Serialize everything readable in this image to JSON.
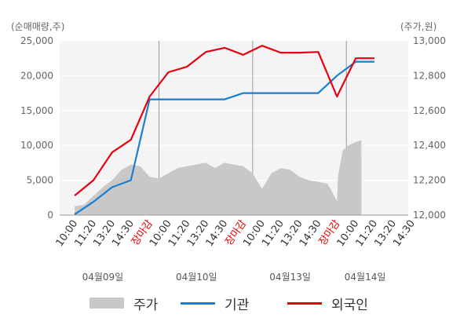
{
  "chart_data": {
    "type": "line",
    "left_axis_unit": "(순매매량,주)",
    "right_axis_unit": "(주가,원)",
    "left_ticks": [
      "0",
      "5,000",
      "10,000",
      "15,000",
      "20,000",
      "25,000"
    ],
    "right_ticks": [
      "12,000",
      "12,200",
      "12,400",
      "12,600",
      "12,800",
      "13,000"
    ],
    "ylim_left": [
      0,
      25000
    ],
    "ylim_right": [
      12000,
      13000
    ],
    "x_ticks": [
      "10:00",
      "11:20",
      "13:20",
      "14:30",
      "장마감",
      "10:00",
      "11:20",
      "13:20",
      "14:30",
      "장마감",
      "10:00",
      "11:20",
      "13:20",
      "14:30",
      "장마감",
      "10:00",
      "11:20",
      "13:20",
      "14:30"
    ],
    "close_label": "장마감",
    "dates": [
      "04월09일",
      "04월10일",
      "04월13일",
      "04월14일"
    ],
    "series": [
      {
        "name": "기관",
        "color": "#1a7fd0",
        "x": [
          0,
          1,
          2,
          3,
          4,
          5,
          6,
          7,
          8,
          9,
          10,
          11,
          12,
          13,
          14,
          15,
          16
        ],
        "values": [
          100,
          1900,
          4000,
          5000,
          16600,
          16600,
          16600,
          16600,
          16600,
          17500,
          17500,
          17500,
          17500,
          17500,
          20000,
          22000,
          22000
        ]
      },
      {
        "name": "외국인",
        "color": "#e60012",
        "x": [
          0,
          1,
          2,
          3,
          4,
          5,
          6,
          7,
          8,
          9,
          10,
          11,
          12,
          13,
          14,
          15,
          16
        ],
        "values": [
          2800,
          5000,
          9000,
          10800,
          17000,
          20500,
          21300,
          23400,
          24000,
          23000,
          24300,
          23300,
          23300,
          23400,
          17000,
          22500,
          22500
        ]
      },
      {
        "name": "주가",
        "color": "#c8c8c8",
        "type": "area",
        "x": [
          0.0,
          0.5,
          1.0,
          1.5,
          2.0,
          2.5,
          3.0,
          3.5,
          4.0,
          4.5,
          5.0,
          5.5,
          6.0,
          6.5,
          7.0,
          7.5,
          8.0,
          8.5,
          9.0,
          9.5,
          10.0,
          10.5,
          11.0,
          11.5,
          12.0,
          12.5,
          13.0,
          13.5,
          14.0,
          14.05,
          14.3,
          14.6,
          15.0,
          15.3
        ],
        "values": [
          12050,
          12060,
          12110,
          12160,
          12200,
          12260,
          12290,
          12280,
          12220,
          12210,
          12240,
          12270,
          12280,
          12290,
          12300,
          12270,
          12300,
          12290,
          12280,
          12240,
          12150,
          12240,
          12270,
          12260,
          12220,
          12200,
          12190,
          12180,
          12080,
          12220,
          12370,
          12400,
          12420,
          12430
        ]
      }
    ],
    "x_range": [
      -0.8,
      17.8
    ],
    "vertical_gridlines_at": [
      4.5,
      9.5,
      14.5
    ]
  },
  "legend": {
    "price_label": "주가",
    "inst_label": "기관",
    "foreign_label": "외국인"
  }
}
